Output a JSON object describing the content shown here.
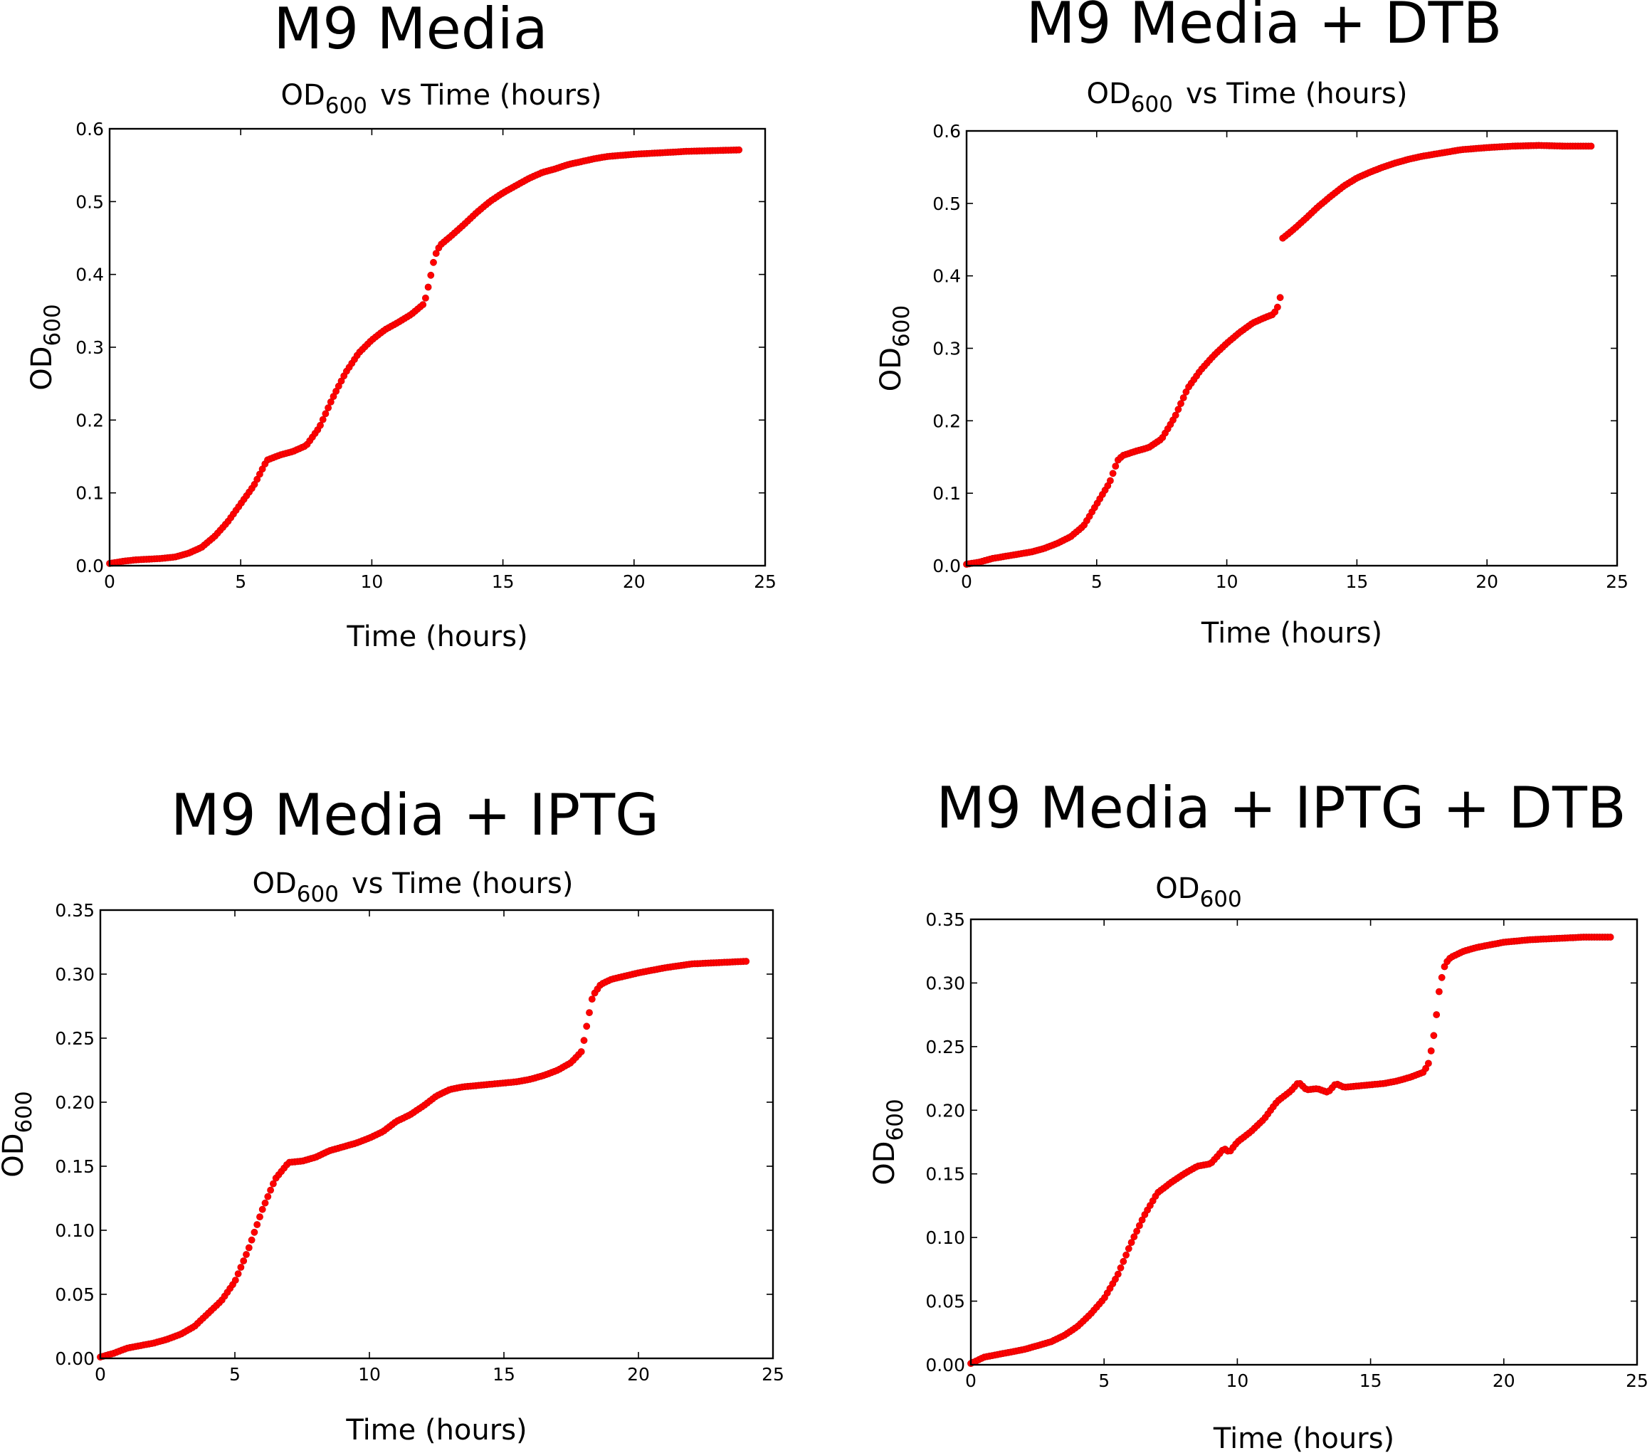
{
  "chart_data": [
    {
      "type": "scatter",
      "title": "M9 Media",
      "subtitle": {
        "main": "OD",
        "sub": "600",
        "rest": "vs Time (hours)"
      },
      "xlabel": "Time (hours)",
      "ylabel": {
        "main": "OD",
        "sub": "600"
      },
      "xlim": [
        0,
        25
      ],
      "ylim": [
        0,
        0.6
      ],
      "xticks": [
        0,
        5,
        10,
        15,
        20,
        25
      ],
      "xtick_labels": [
        "0",
        "5",
        "10",
        "15",
        "20",
        "25"
      ],
      "yticks": [
        0,
        0.1,
        0.2,
        0.3,
        0.4,
        0.5,
        0.6
      ],
      "ytick_labels": [
        "0.0",
        "0.1",
        "0.2",
        "0.3",
        "0.4",
        "0.5",
        "0.6"
      ],
      "marker_color": "#ff0000",
      "series": [
        {
          "name": "OD600",
          "x_end": 24.0,
          "n_points": 240,
          "points": [
            [
              0,
              0.003
            ],
            [
              0.5,
              0.006
            ],
            [
              1,
              0.008
            ],
            [
              1.5,
              0.009
            ],
            [
              2,
              0.01
            ],
            [
              2.5,
              0.012
            ],
            [
              3,
              0.017
            ],
            [
              3.5,
              0.025
            ],
            [
              4,
              0.04
            ],
            [
              4.5,
              0.06
            ],
            [
              5,
              0.085
            ],
            [
              5.5,
              0.11
            ],
            [
              6,
              0.145
            ],
            [
              6.5,
              0.152
            ],
            [
              7,
              0.157
            ],
            [
              7.5,
              0.165
            ],
            [
              8,
              0.19
            ],
            [
              8.5,
              0.23
            ],
            [
              9,
              0.265
            ],
            [
              9.5,
              0.292
            ],
            [
              10,
              0.31
            ],
            [
              10.5,
              0.324
            ],
            [
              11,
              0.334
            ],
            [
              11.5,
              0.345
            ],
            [
              12,
              0.36
            ],
            [
              12.2,
              0.39
            ],
            [
              12.4,
              0.425
            ],
            [
              12.6,
              0.44
            ],
            [
              13,
              0.452
            ],
            [
              13.5,
              0.468
            ],
            [
              14,
              0.485
            ],
            [
              14.5,
              0.5
            ],
            [
              15,
              0.512
            ],
            [
              15.5,
              0.522
            ],
            [
              16,
              0.532
            ],
            [
              16.5,
              0.54
            ],
            [
              17,
              0.545
            ],
            [
              17.5,
              0.551
            ],
            [
              18,
              0.555
            ],
            [
              18.5,
              0.559
            ],
            [
              19,
              0.562
            ],
            [
              20,
              0.565
            ],
            [
              21,
              0.567
            ],
            [
              22,
              0.569
            ],
            [
              23,
              0.57
            ],
            [
              24,
              0.571
            ]
          ]
        }
      ]
    },
    {
      "type": "scatter",
      "title": "M9 Media + DTB",
      "subtitle": {
        "main": "OD",
        "sub": "600",
        "rest": "vs Time (hours)"
      },
      "xlabel": "Time (hours)",
      "ylabel": {
        "main": "OD",
        "sub": "600"
      },
      "xlim": [
        0,
        25
      ],
      "ylim": [
        0,
        0.6
      ],
      "xticks": [
        0,
        5,
        10,
        15,
        20,
        25
      ],
      "xtick_labels": [
        "0",
        "5",
        "10",
        "15",
        "20",
        "25"
      ],
      "yticks": [
        0,
        0.1,
        0.2,
        0.3,
        0.4,
        0.5,
        0.6
      ],
      "ytick_labels": [
        "0.0",
        "0.1",
        "0.2",
        "0.3",
        "0.4",
        "0.5",
        "0.6"
      ],
      "marker_color": "#ff0000",
      "series": [
        {
          "name": "OD600",
          "x_end": 24.0,
          "n_points": 240,
          "points": [
            [
              0,
              0.002
            ],
            [
              0.5,
              0.005
            ],
            [
              1,
              0.01
            ],
            [
              1.5,
              0.013
            ],
            [
              2,
              0.016
            ],
            [
              2.5,
              0.019
            ],
            [
              3,
              0.024
            ],
            [
              3.5,
              0.031
            ],
            [
              4,
              0.04
            ],
            [
              4.5,
              0.055
            ],
            [
              5,
              0.085
            ],
            [
              5.5,
              0.115
            ],
            [
              5.8,
              0.145
            ],
            [
              6,
              0.152
            ],
            [
              6.5,
              0.158
            ],
            [
              7,
              0.163
            ],
            [
              7.5,
              0.175
            ],
            [
              8,
              0.205
            ],
            [
              8.5,
              0.245
            ],
            [
              9,
              0.27
            ],
            [
              9.5,
              0.29
            ],
            [
              10,
              0.307
            ],
            [
              10.5,
              0.322
            ],
            [
              11,
              0.335
            ],
            [
              11.5,
              0.343
            ],
            [
              11.8,
              0.347
            ],
            [
              12,
              0.36
            ],
            [
              12.1,
              0.38
            ],
            [
              12.15,
              0.452
            ],
            [
              12.5,
              0.462
            ],
            [
              13,
              0.478
            ],
            [
              13.5,
              0.495
            ],
            [
              14,
              0.51
            ],
            [
              14.5,
              0.524
            ],
            [
              15,
              0.535
            ],
            [
              15.5,
              0.543
            ],
            [
              16,
              0.55
            ],
            [
              16.5,
              0.556
            ],
            [
              17,
              0.561
            ],
            [
              17.5,
              0.565
            ],
            [
              18,
              0.568
            ],
            [
              18.5,
              0.571
            ],
            [
              19,
              0.574
            ],
            [
              20,
              0.577
            ],
            [
              21,
              0.579
            ],
            [
              22,
              0.58
            ],
            [
              23,
              0.579
            ],
            [
              24,
              0.579
            ]
          ]
        }
      ]
    },
    {
      "type": "scatter",
      "title": "M9 Media + IPTG",
      "subtitle": {
        "main": "OD",
        "sub": "600",
        "rest": "vs Time (hours)"
      },
      "xlabel": "Time (hours)",
      "ylabel": {
        "main": "OD",
        "sub": "600"
      },
      "xlim": [
        0,
        25
      ],
      "ylim": [
        0,
        0.35
      ],
      "xticks": [
        0,
        5,
        10,
        15,
        20,
        25
      ],
      "xtick_labels": [
        "0",
        "5",
        "10",
        "15",
        "20",
        "25"
      ],
      "yticks": [
        0,
        0.05,
        0.1,
        0.15,
        0.2,
        0.25,
        0.3,
        0.35
      ],
      "ytick_labels": [
        "0.00",
        "0.05",
        "0.10",
        "0.15",
        "0.20",
        "0.25",
        "0.30",
        "0.35"
      ],
      "marker_color": "#ff0000",
      "series": [
        {
          "name": "OD600",
          "x_end": 24.0,
          "n_points": 240,
          "points": [
            [
              0,
              0.001
            ],
            [
              0.5,
              0.004
            ],
            [
              1,
              0.008
            ],
            [
              1.5,
              0.01
            ],
            [
              2,
              0.012
            ],
            [
              2.5,
              0.015
            ],
            [
              3,
              0.019
            ],
            [
              3.5,
              0.025
            ],
            [
              4,
              0.035
            ],
            [
              4.5,
              0.045
            ],
            [
              5,
              0.06
            ],
            [
              5.5,
              0.085
            ],
            [
              6,
              0.115
            ],
            [
              6.5,
              0.14
            ],
            [
              7,
              0.153
            ],
            [
              7.5,
              0.154
            ],
            [
              8,
              0.157
            ],
            [
              8.5,
              0.162
            ],
            [
              9,
              0.165
            ],
            [
              9.5,
              0.168
            ],
            [
              10,
              0.172
            ],
            [
              10.5,
              0.177
            ],
            [
              11,
              0.185
            ],
            [
              11.5,
              0.19
            ],
            [
              12,
              0.197
            ],
            [
              12.5,
              0.205
            ],
            [
              13,
              0.21
            ],
            [
              13.5,
              0.212
            ],
            [
              14,
              0.213
            ],
            [
              14.5,
              0.214
            ],
            [
              15,
              0.215
            ],
            [
              15.5,
              0.216
            ],
            [
              16,
              0.218
            ],
            [
              16.5,
              0.221
            ],
            [
              17,
              0.225
            ],
            [
              17.5,
              0.231
            ],
            [
              17.9,
              0.24
            ],
            [
              18.1,
              0.262
            ],
            [
              18.3,
              0.283
            ],
            [
              18.6,
              0.292
            ],
            [
              19,
              0.296
            ],
            [
              20,
              0.301
            ],
            [
              21,
              0.305
            ],
            [
              22,
              0.308
            ],
            [
              23,
              0.309
            ],
            [
              24,
              0.31
            ]
          ]
        }
      ]
    },
    {
      "type": "scatter",
      "title": "M9 Media + IPTG + DTB",
      "subtitle": {
        "main": "OD",
        "sub": "600",
        "rest": ""
      },
      "xlabel": "Time (hours)",
      "ylabel": {
        "main": "OD",
        "sub": "600"
      },
      "xlim": [
        0,
        25
      ],
      "ylim": [
        0,
        0.35
      ],
      "xticks": [
        0,
        5,
        10,
        15,
        20,
        25
      ],
      "xtick_labels": [
        "0",
        "5",
        "10",
        "15",
        "20",
        "25"
      ],
      "yticks": [
        0,
        0.05,
        0.1,
        0.15,
        0.2,
        0.25,
        0.3,
        0.35
      ],
      "ytick_labels": [
        "0.00",
        "0.05",
        "0.10",
        "0.15",
        "0.20",
        "0.25",
        "0.30",
        "0.35"
      ],
      "marker_color": "#ff0000",
      "series": [
        {
          "name": "OD600",
          "x_end": 24.0,
          "n_points": 240,
          "points": [
            [
              0,
              0.001
            ],
            [
              0.5,
              0.006
            ],
            [
              1,
              0.008
            ],
            [
              1.5,
              0.01
            ],
            [
              2,
              0.012
            ],
            [
              2.5,
              0.015
            ],
            [
              3,
              0.018
            ],
            [
              3.5,
              0.023
            ],
            [
              4,
              0.03
            ],
            [
              4.5,
              0.04
            ],
            [
              5,
              0.052
            ],
            [
              5.5,
              0.07
            ],
            [
              6,
              0.095
            ],
            [
              6.5,
              0.117
            ],
            [
              7,
              0.135
            ],
            [
              7.5,
              0.143
            ],
            [
              8,
              0.15
            ],
            [
              8.5,
              0.156
            ],
            [
              9,
              0.158
            ],
            [
              9.3,
              0.165
            ],
            [
              9.5,
              0.17
            ],
            [
              9.7,
              0.167
            ],
            [
              10,
              0.175
            ],
            [
              10.5,
              0.183
            ],
            [
              11,
              0.193
            ],
            [
              11.5,
              0.207
            ],
            [
              12,
              0.215
            ],
            [
              12.3,
              0.222
            ],
            [
              12.6,
              0.216
            ],
            [
              13,
              0.217
            ],
            [
              13.4,
              0.214
            ],
            [
              13.7,
              0.221
            ],
            [
              14,
              0.218
            ],
            [
              14.5,
              0.219
            ],
            [
              15,
              0.22
            ],
            [
              15.5,
              0.221
            ],
            [
              16,
              0.223
            ],
            [
              16.5,
              0.226
            ],
            [
              17,
              0.23
            ],
            [
              17.2,
              0.238
            ],
            [
              17.4,
              0.262
            ],
            [
              17.6,
              0.298
            ],
            [
              17.8,
              0.315
            ],
            [
              18,
              0.32
            ],
            [
              18.5,
              0.325
            ],
            [
              19,
              0.328
            ],
            [
              20,
              0.332
            ],
            [
              21,
              0.334
            ],
            [
              22,
              0.335
            ],
            [
              23,
              0.336
            ],
            [
              24,
              0.336
            ]
          ]
        }
      ]
    }
  ]
}
